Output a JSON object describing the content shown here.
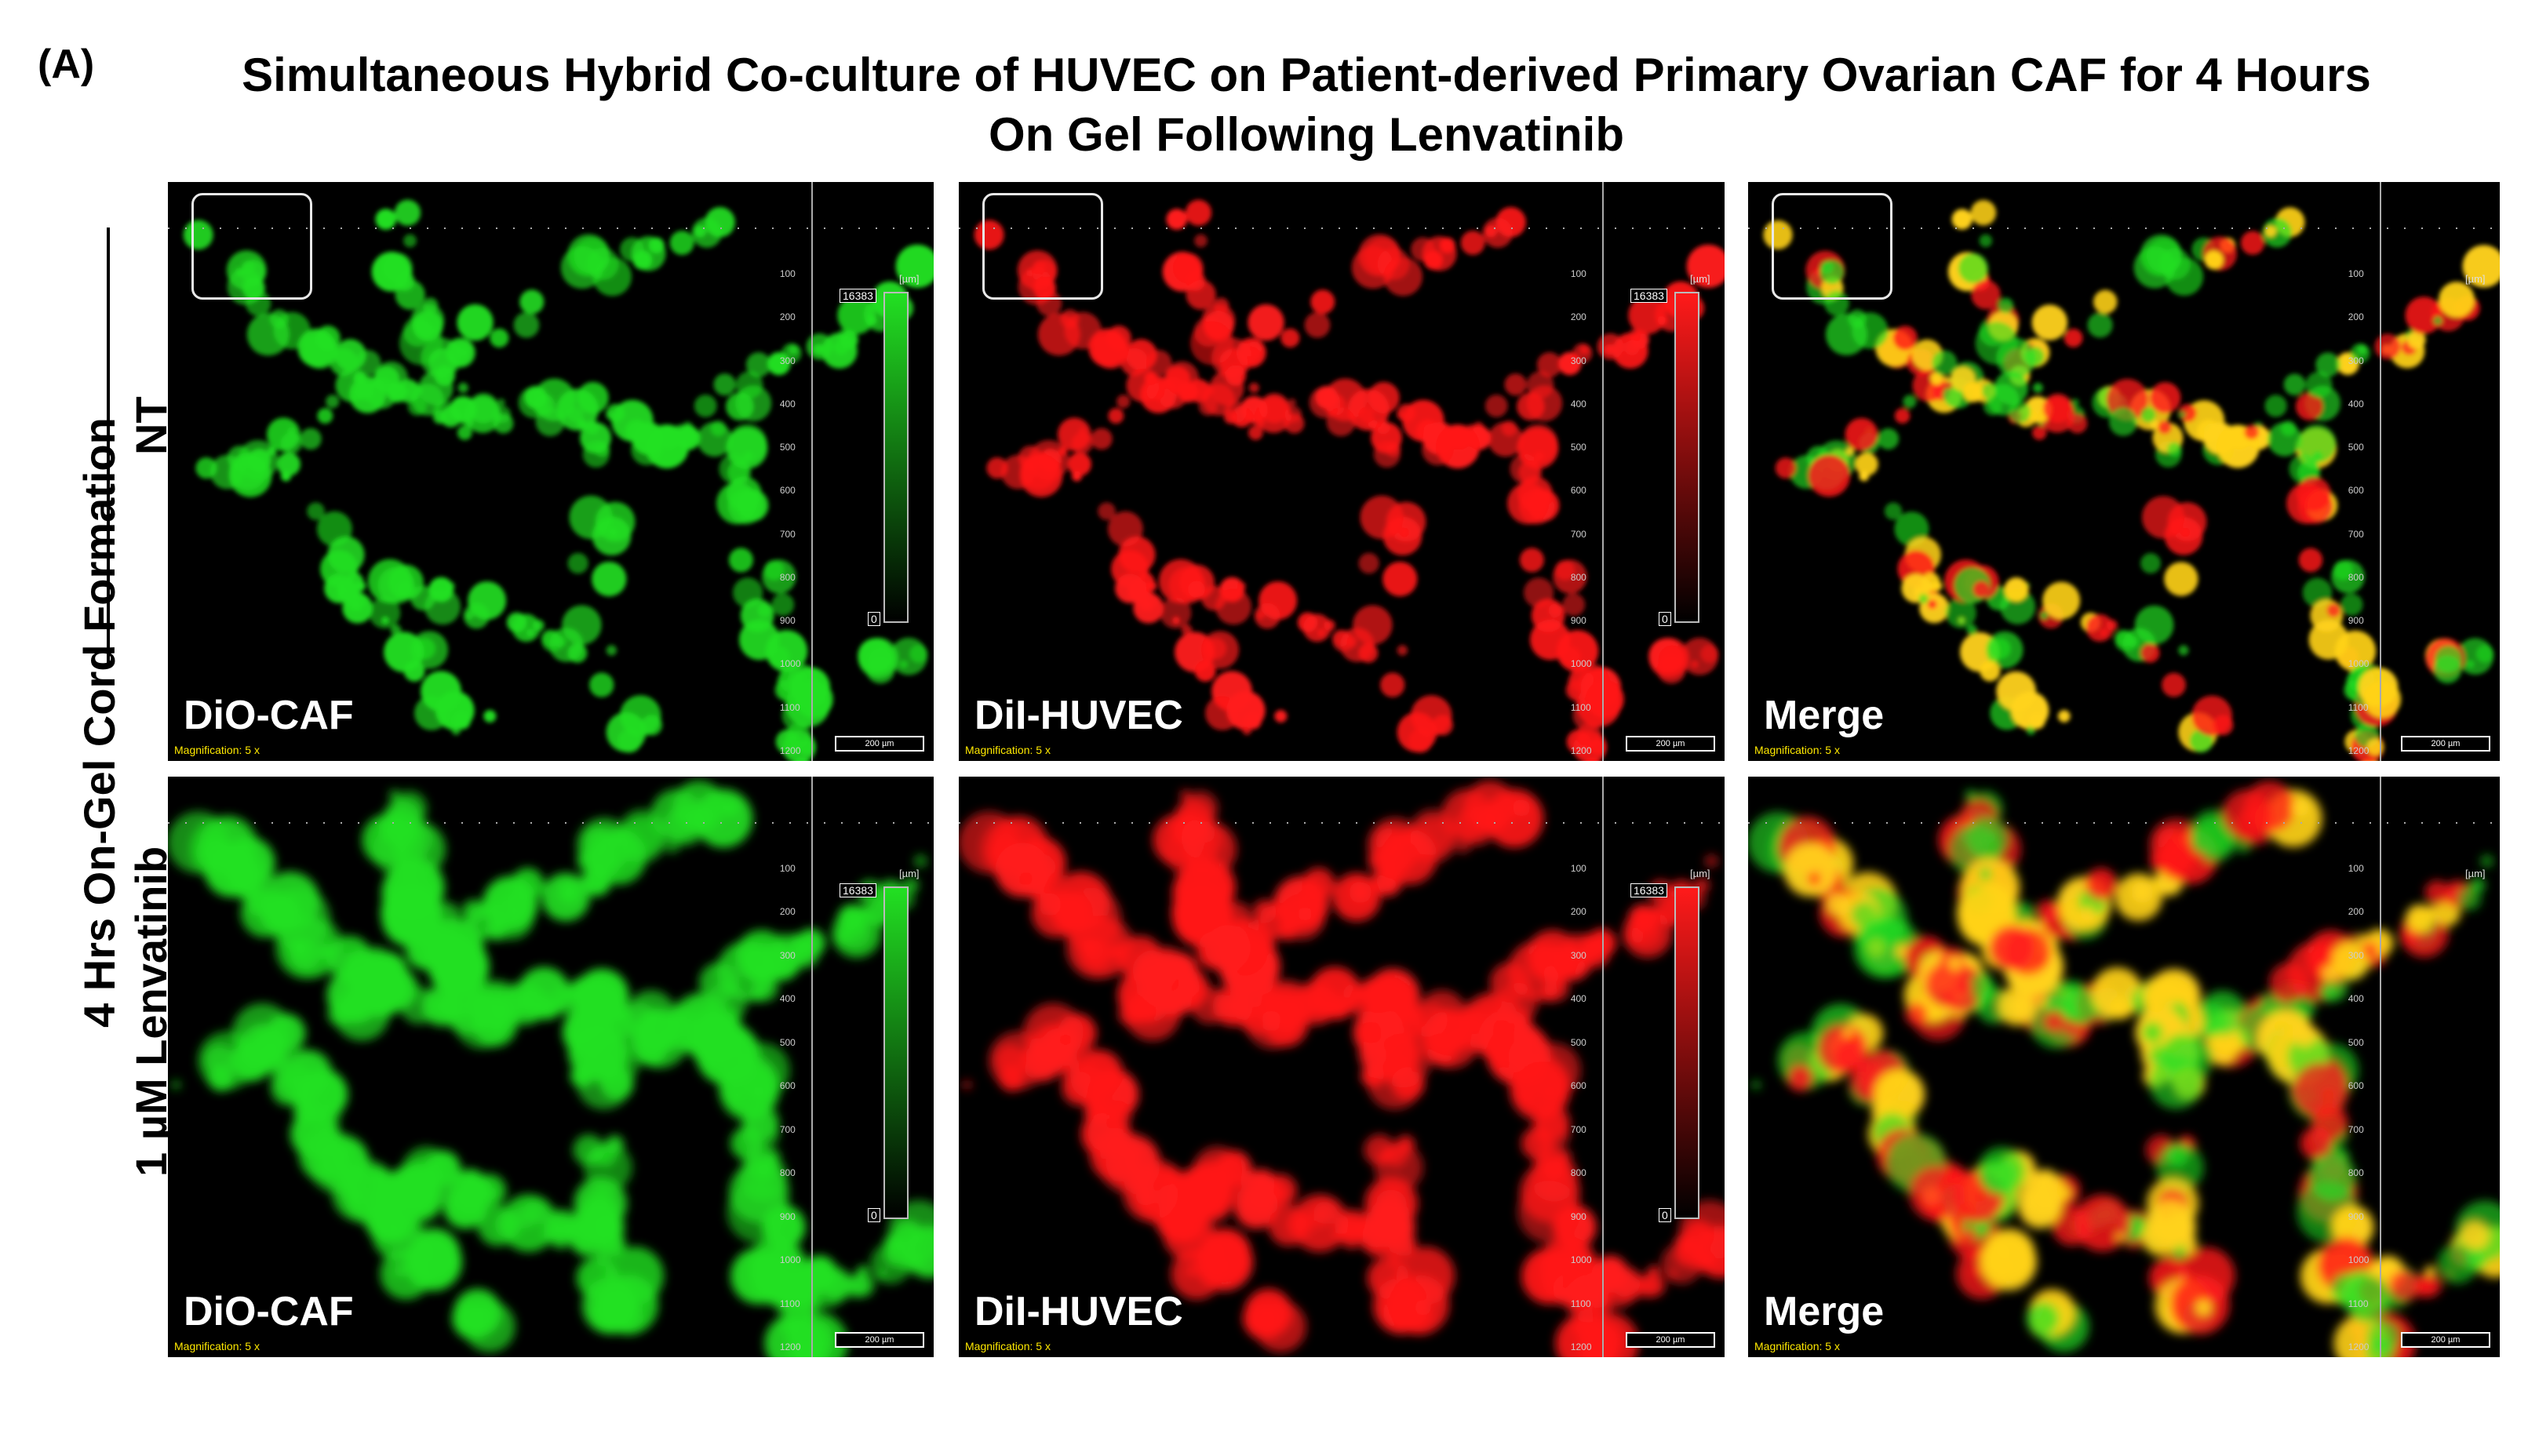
{
  "panel_letter": "(A)",
  "title_line1": "Simultaneous Hybrid Co-culture of HUVEC on Patient-derived Primary Ovarian CAF for 4 Hours",
  "title_line2": "On Gel Following Lenvatinib",
  "row_axis_label": "4 Hrs On-Gel Cord Formation",
  "rows": [
    {
      "label": "NT"
    },
    {
      "label": "1 µM Lenvatinib"
    }
  ],
  "tile_labels": {
    "green": "DiO-CAF",
    "red": "DiI-HUVEC",
    "merge": "Merge"
  },
  "magnification": "Magnification: 5 x",
  "scalebar": "200 µm",
  "colorbar_max": "16383",
  "colorbar_min": "0",
  "unit": "[µm]",
  "ruler_ticks": [
    "100",
    "200",
    "300",
    "400",
    "500",
    "600",
    "700",
    "800",
    "900",
    "1000",
    "1100",
    "1200"
  ],
  "colors": {
    "green": "#22e022",
    "red": "#ff1a1a",
    "yellow": "#ffd21a"
  }
}
